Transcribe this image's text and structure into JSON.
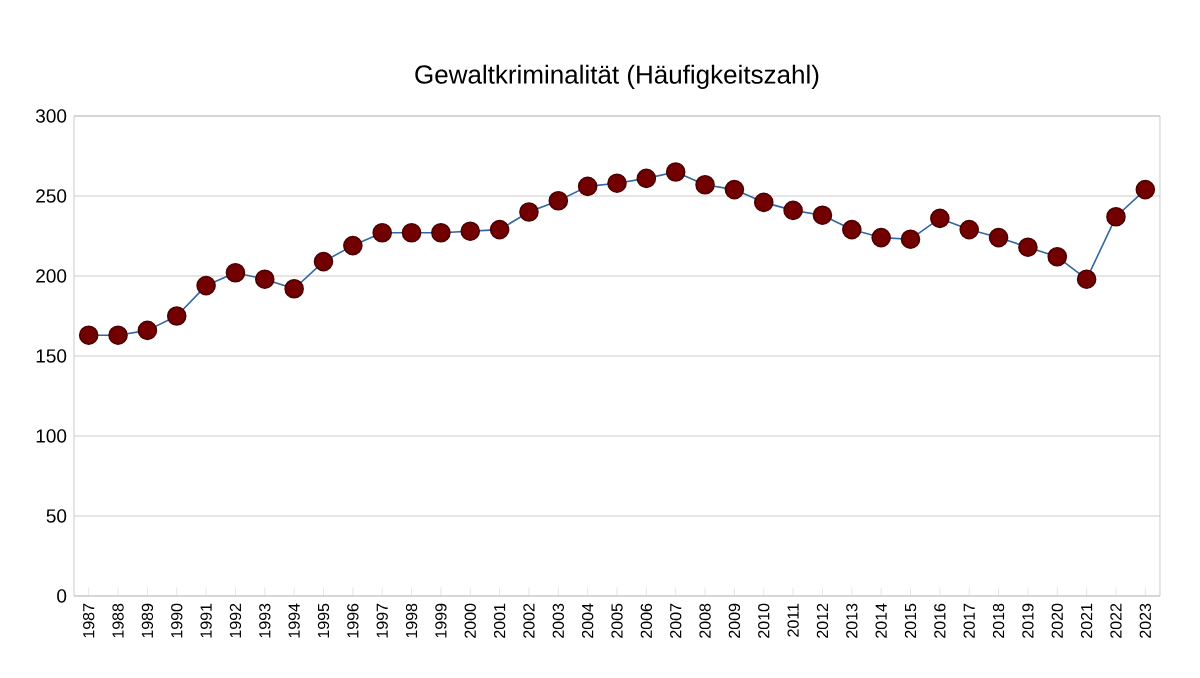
{
  "chart_data": {
    "type": "line",
    "title": "Gewaltkriminalität (Häufigkeitszahl)",
    "categories": [
      "1987",
      "1988",
      "1989",
      "1990",
      "1991",
      "1992",
      "1993",
      "1994",
      "1995",
      "1996",
      "1997",
      "1998",
      "1999",
      "2000",
      "2001",
      "2002",
      "2003",
      "2004",
      "2005",
      "2006",
      "2007",
      "2008",
      "2009",
      "2010",
      "2011",
      "2012",
      "2013",
      "2014",
      "2015",
      "2016",
      "2017",
      "2018",
      "2019",
      "2020",
      "2021",
      "2022",
      "2023"
    ],
    "series": [
      {
        "color": "#3465a4",
        "values": [
          163,
          163,
          166,
          175,
          194,
          202,
          198,
          192,
          209,
          219,
          227,
          227,
          227,
          228,
          229,
          240,
          247,
          256,
          258,
          261,
          265,
          257,
          254,
          246,
          241,
          238,
          229,
          224,
          223,
          236,
          229,
          224,
          218,
          212,
          198,
          237,
          254
        ]
      }
    ],
    "marker": "circle",
    "line_style": "solid",
    "grid": "y",
    "ylim": [
      0,
      300
    ],
    "yticks": [
      0,
      50,
      100,
      150,
      200,
      250,
      300
    ]
  }
}
